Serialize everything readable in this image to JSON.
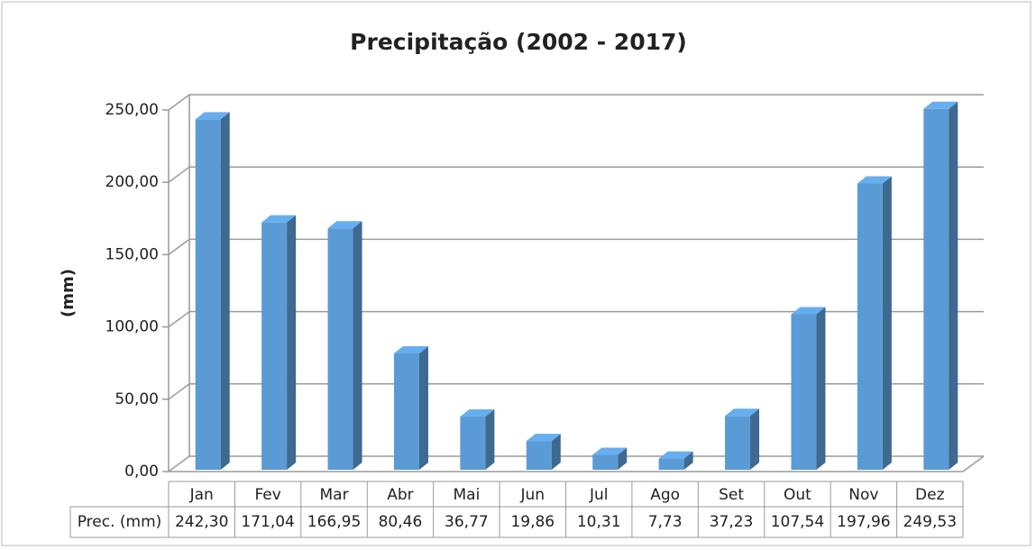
{
  "chart_data": {
    "type": "bar",
    "title": "Precipitação (2002 - 2017)",
    "y_label": "(mm)",
    "categories": [
      "Jan",
      "Fev",
      "Mar",
      "Abr",
      "Mai",
      "Jun",
      "Jul",
      "Ago",
      "Set",
      "Out",
      "Nov",
      "Dez"
    ],
    "series": [
      {
        "name": "Prec. (mm)",
        "color": "#5b9bd5",
        "values": [
          242.3,
          171.04,
          166.95,
          80.46,
          36.77,
          19.86,
          10.31,
          7.73,
          37.23,
          107.54,
          197.96,
          249.53
        ],
        "value_labels": [
          "242,30",
          "171,04",
          "166,95",
          "80,46",
          "36,77",
          "19,86",
          "10,31",
          "7,73",
          "37,23",
          "107,54",
          "197,96",
          "249,53"
        ]
      }
    ],
    "ylim": [
      0,
      250
    ],
    "yticks": [
      {
        "value": 0,
        "label": "0,00"
      },
      {
        "value": 50,
        "label": "50,00"
      },
      {
        "value": 100,
        "label": "100,00"
      },
      {
        "value": 150,
        "label": "150,00"
      },
      {
        "value": 200,
        "label": "200,00"
      },
      {
        "value": 250,
        "label": "250,00"
      }
    ],
    "grid": true
  }
}
